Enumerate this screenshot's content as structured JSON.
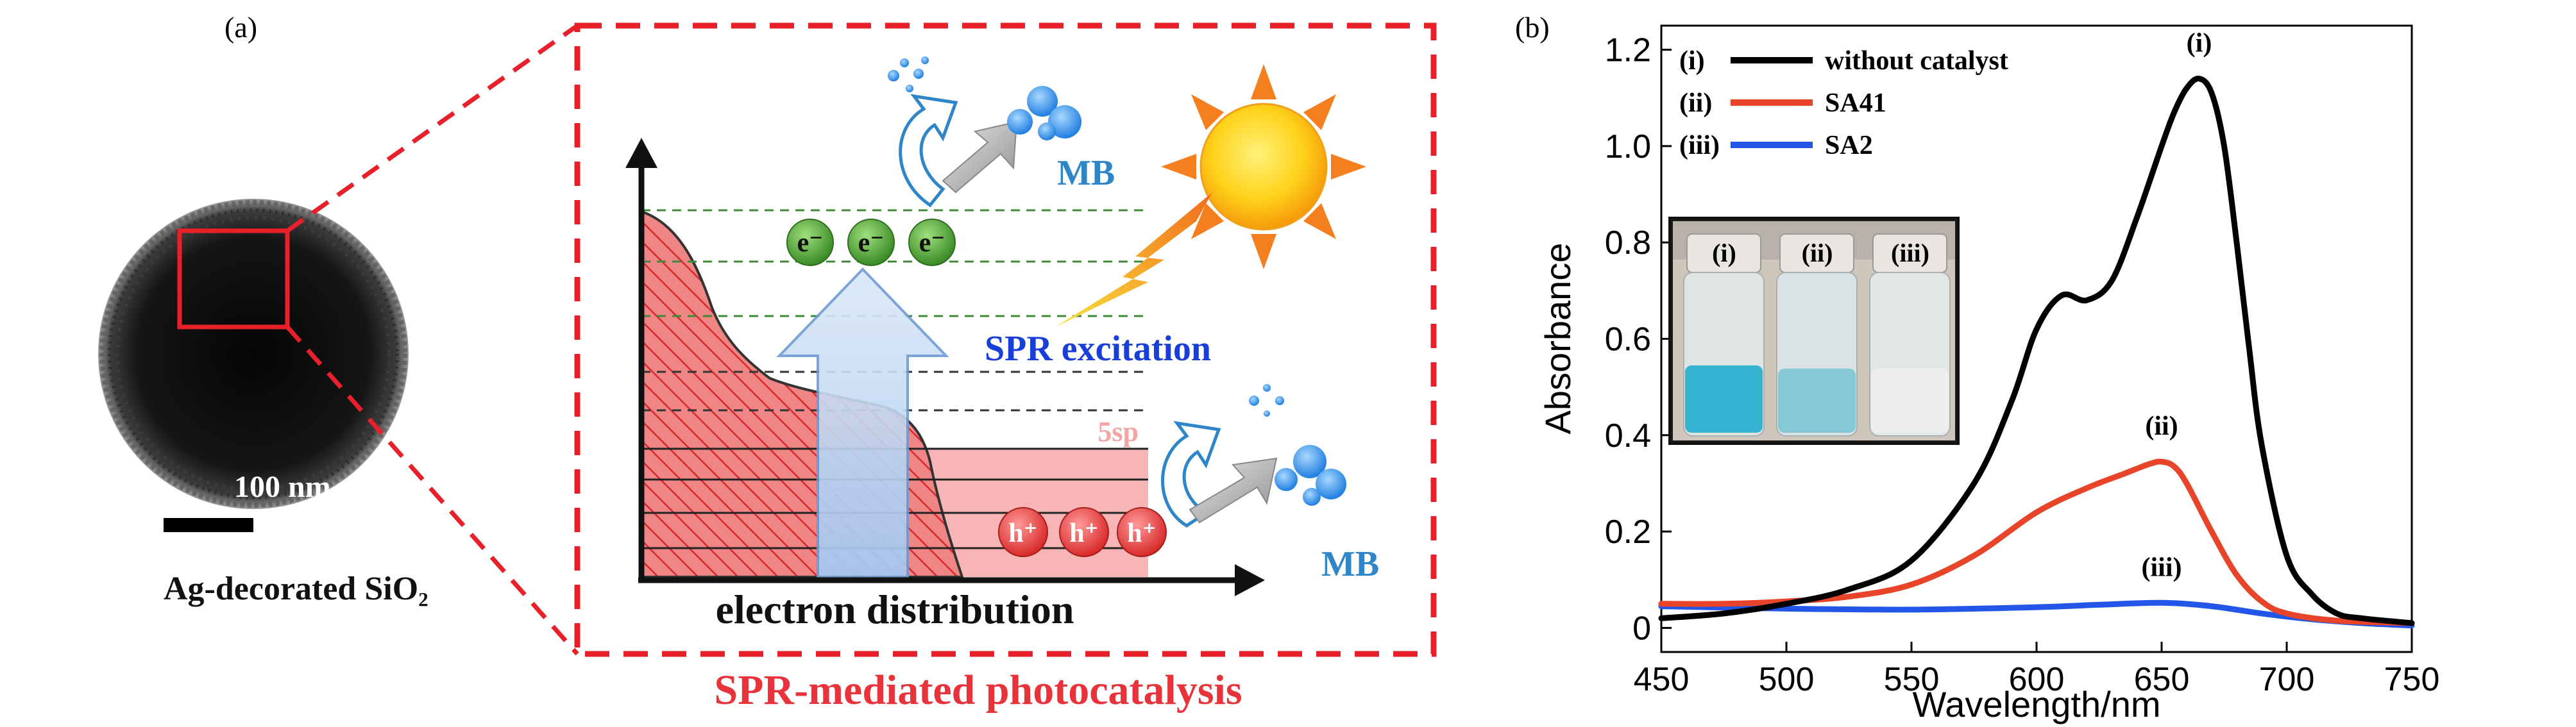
{
  "panel_a": {
    "label": "(a)",
    "scale_bar_label": "100 nm",
    "particle_caption": "Ag-decorated SiO₂",
    "diagram_caption": "SPR-mediated photocatalysis",
    "x_axis_label": "electron distribution",
    "spr_label": "SPR excitation",
    "mb_top": "MB",
    "mb_bottom": "MB",
    "band_label": "5sp",
    "electrons": [
      "e⁻",
      "e⁻",
      "e⁻"
    ],
    "holes": [
      "h⁺",
      "h⁺",
      "h⁺"
    ],
    "colors": {
      "dash_frame": "#e8202a",
      "caption_red": "#e8333a",
      "spr_blue": "#1a3fd8",
      "mb_blue": "#2e86c8",
      "electron_green": "#4a9a34",
      "hole_red": "#e84848",
      "dashed_level": "#3f8a36"
    },
    "icons": [
      "sun-icon",
      "lightning-icon",
      "curved-arrow-icon",
      "bubble-cluster-icon"
    ]
  },
  "panel_b": {
    "label": "(b)",
    "inset_labels": [
      "(i)",
      "(ii)",
      "(iii)"
    ]
  },
  "chart_data": {
    "type": "line",
    "xlabel": "Wavelength/nm",
    "ylabel": "Absorbance",
    "xlim": [
      450,
      750
    ],
    "ylim": [
      -0.05,
      1.25
    ],
    "x_ticks": [
      450,
      500,
      550,
      600,
      650,
      700,
      750
    ],
    "y_ticks": [
      0,
      0.2,
      0.4,
      0.6,
      0.8,
      1.0,
      1.2
    ],
    "y_tick_labels": [
      "0",
      "0.2",
      "0.4",
      "0.6",
      "0.8",
      "1.0",
      "1.2"
    ],
    "grid": false,
    "legend_position": "top-left",
    "series": [
      {
        "name": "without catalyst",
        "key": "(i)",
        "peak_label": "(i)",
        "color": "#000000",
        "x": [
          450,
          475,
          500,
          525,
          550,
          575,
          590,
          600,
          610,
          620,
          630,
          640,
          650,
          655,
          660,
          665,
          670,
          675,
          680,
          685,
          690,
          700,
          710,
          720,
          730,
          750
        ],
        "y": [
          0.02,
          0.03,
          0.05,
          0.08,
          0.14,
          0.3,
          0.47,
          0.62,
          0.69,
          0.68,
          0.72,
          0.85,
          1.0,
          1.07,
          1.12,
          1.14,
          1.11,
          1.0,
          0.8,
          0.58,
          0.38,
          0.15,
          0.07,
          0.03,
          0.02,
          0.01
        ]
      },
      {
        "name": "SA41",
        "key": "(ii)",
        "peak_label": "(ii)",
        "color": "#e8442a",
        "x": [
          450,
          475,
          500,
          525,
          550,
          575,
          600,
          620,
          635,
          645,
          650,
          655,
          660,
          670,
          680,
          690,
          700,
          720,
          750
        ],
        "y": [
          0.05,
          0.05,
          0.055,
          0.065,
          0.09,
          0.15,
          0.24,
          0.29,
          0.32,
          0.34,
          0.345,
          0.335,
          0.3,
          0.2,
          0.11,
          0.055,
          0.03,
          0.015,
          0.01
        ]
      },
      {
        "name": "SA2",
        "key": "(iii)",
        "peak_label": "(iii)",
        "color": "#2356e8",
        "x": [
          450,
          500,
          550,
          600,
          625,
          650,
          670,
          690,
          710,
          730,
          750
        ],
        "y": [
          0.045,
          0.04,
          0.038,
          0.043,
          0.048,
          0.052,
          0.045,
          0.03,
          0.018,
          0.01,
          0.005
        ]
      }
    ]
  }
}
